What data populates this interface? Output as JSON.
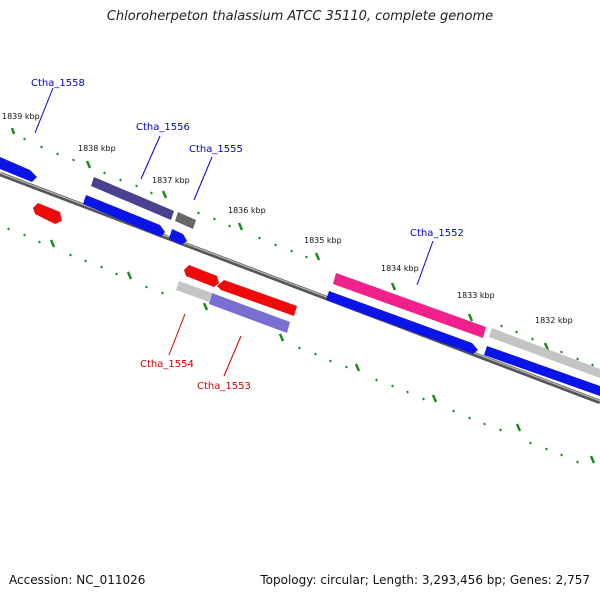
{
  "title": "Chloroherpeton thalassium ATCC 35110, complete genome",
  "footer": {
    "accession": "Accession: NC_011026",
    "topology": "Topology: circular; Length: 3,293,456 bp; Genes: 2,757"
  },
  "kbp_labels": [
    "1839 kbp",
    "1838 kbp",
    "1837 kbp",
    "1836 kbp",
    "1835 kbp",
    "1834 kbp",
    "1833 kbp",
    "1832 kbp"
  ],
  "gene_labels": {
    "ctha_1558": "Ctha_1558",
    "ctha_1556": "Ctha_1556",
    "ctha_1555": "Ctha_1555",
    "ctha_1552": "Ctha_1552",
    "ctha_1554": "Ctha_1554",
    "ctha_1553": "Ctha_1553"
  },
  "colors": {
    "backbone": "#777777",
    "tick": "#1f8a1f",
    "forward_label": "#0000cc",
    "reverse_label": "#cc0000",
    "blue": "#0a14e8",
    "red": "#ee0a0a",
    "dark_purple": "#4a4090",
    "pink": "#f0208c",
    "light_gray": "#c4c4c4",
    "dark_gray": "#666666",
    "lavender": "#7a6fd0"
  }
}
